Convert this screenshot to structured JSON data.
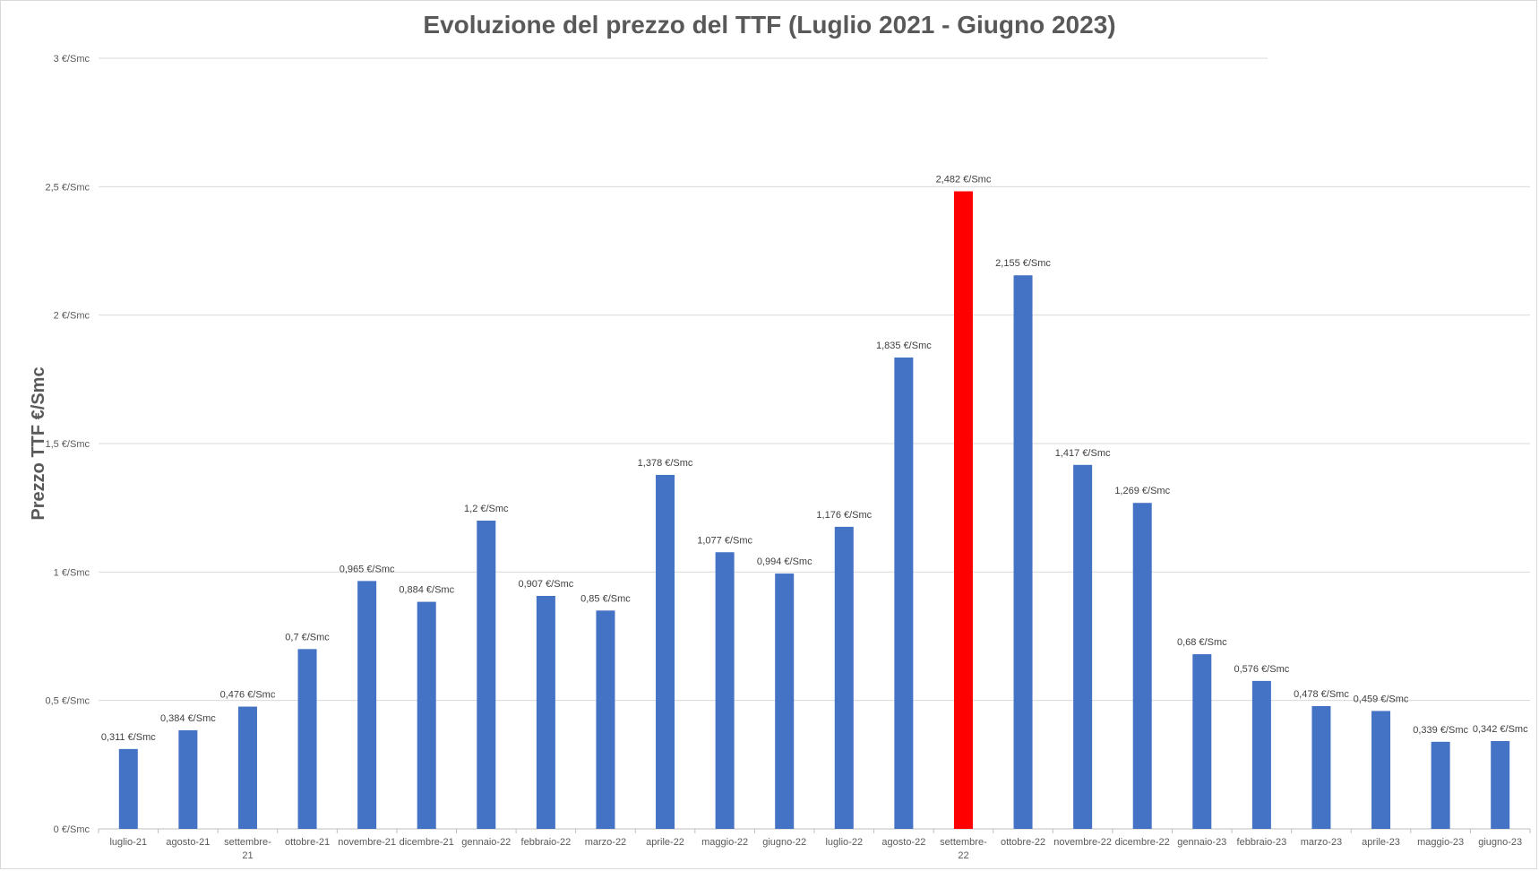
{
  "chart_data": {
    "type": "bar",
    "title": "Evoluzione del prezzo del TTF (Luglio 2021 - Giugno 2023)",
    "xlabel": "",
    "ylabel": "Prezzo TTF €/Smc",
    "ylim": [
      0,
      3
    ],
    "yticks": [
      "0 €/Smc",
      "0,5 €/Smc",
      "1 €/Smc",
      "1,5 €/Smc",
      "2 €/Smc",
      "2,5 €/Smc",
      "3 €/Smc"
    ],
    "ytick_values": [
      0,
      0.5,
      1,
      1.5,
      2,
      2.5,
      3
    ],
    "grid": true,
    "categories": [
      "luglio-21",
      "agosto-21",
      "settembre-21",
      "ottobre-21",
      "novembre-21",
      "dicembre-21",
      "gennaio-22",
      "febbraio-22",
      "marzo-22",
      "aprile-22",
      "maggio-22",
      "giugno-22",
      "luglio-22",
      "agosto-22",
      "settembre-22",
      "ottobre-22",
      "novembre-22",
      "dicembre-22",
      "gennaio-23",
      "febbraio-23",
      "marzo-23",
      "aprile-23",
      "maggio-23",
      "giugno-23"
    ],
    "values": [
      0.311,
      0.384,
      0.476,
      0.7,
      0.965,
      0.884,
      1.2,
      0.907,
      0.85,
      1.378,
      1.077,
      0.994,
      1.176,
      1.835,
      2.482,
      2.155,
      1.417,
      1.269,
      0.68,
      0.576,
      0.478,
      0.459,
      0.339,
      0.342
    ],
    "data_labels": [
      "0,311 €/Smc",
      "0,384 €/Smc",
      "0,476 €/Smc",
      "0,7 €/Smc",
      "0,965 €/Smc",
      "0,884 €/Smc",
      "1,2 €/Smc",
      "0,907 €/Smc",
      "0,85 €/Smc",
      "1,378 €/Smc",
      "1,077 €/Smc",
      "0,994 €/Smc",
      "1,176 €/Smc",
      "1,835 €/Smc",
      "2,482 €/Smc",
      "2,155 €/Smc",
      "1,417 €/Smc",
      "1,269 €/Smc",
      "0,68 €/Smc",
      "0,576 €/Smc",
      "0,478 €/Smc",
      "0,459 €/Smc",
      "0,339 €/Smc",
      "0,342 €/Smc"
    ],
    "bar_color": "#4472c4",
    "highlight_color": "#ff0000",
    "highlight_category": "settembre-22",
    "gridline_color": "#d9d9d9"
  }
}
